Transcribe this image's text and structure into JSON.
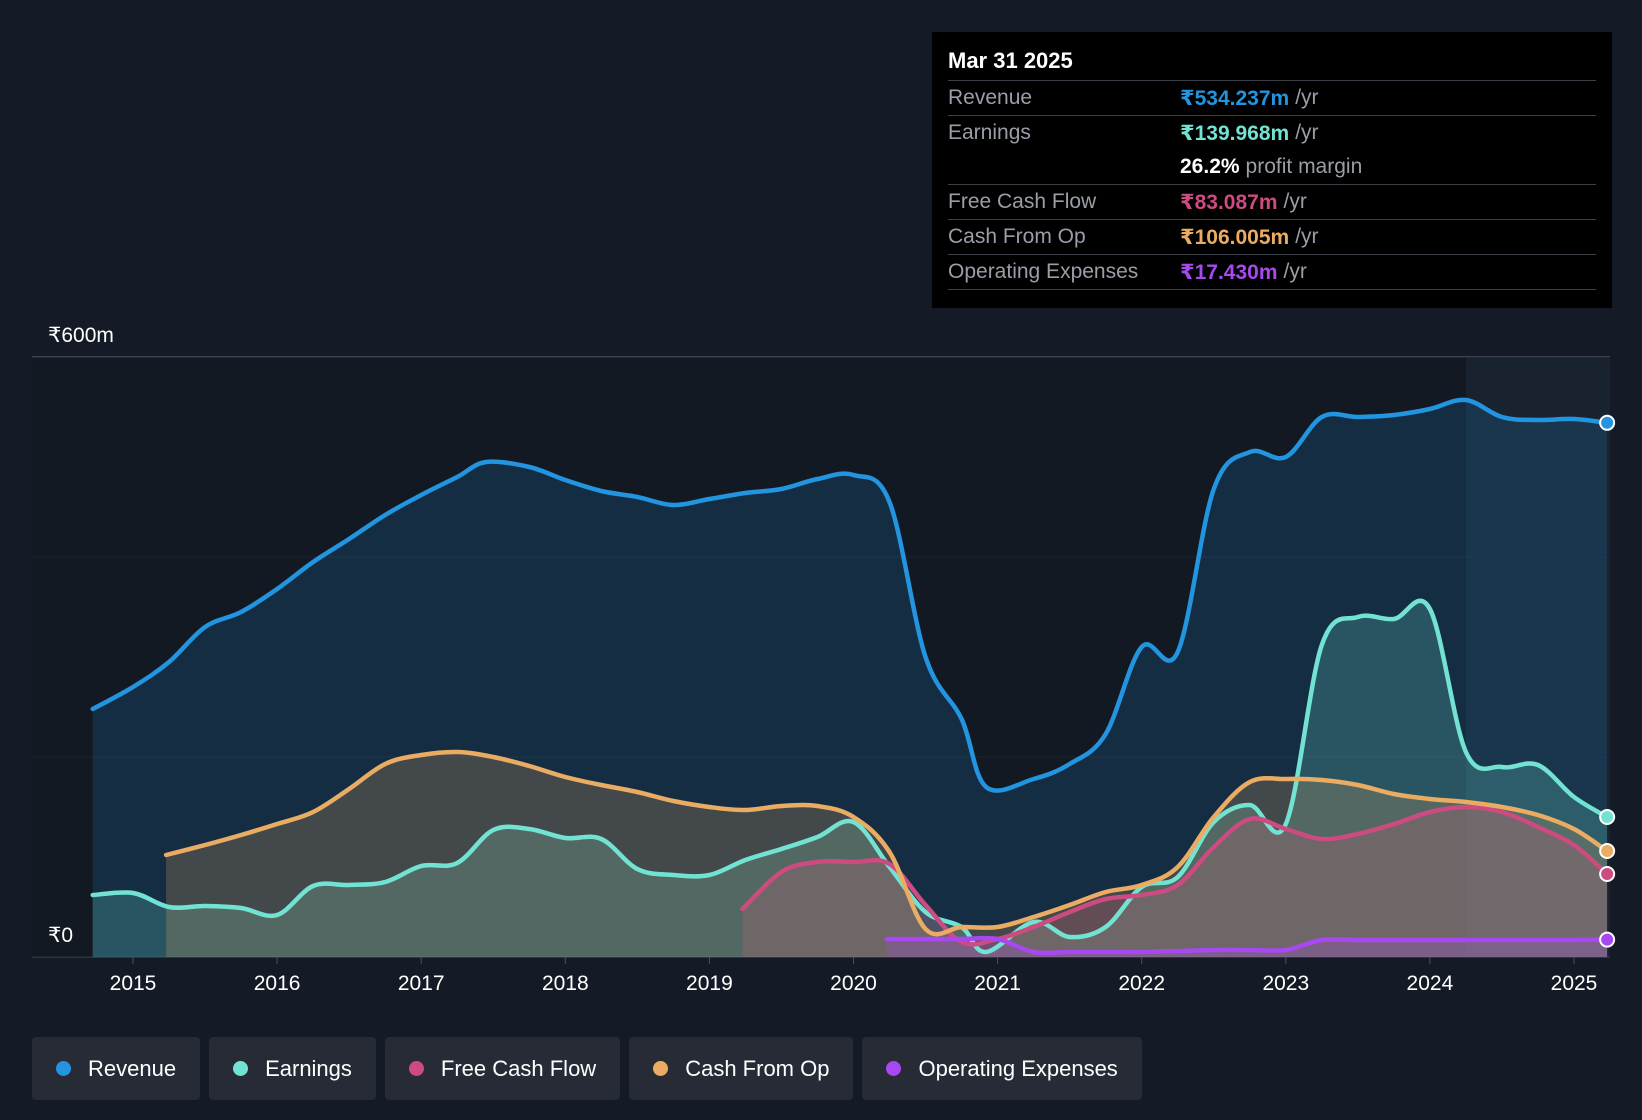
{
  "tooltip": {
    "date": "Mar 31 2025",
    "rows": [
      {
        "label": "Revenue",
        "value": "₹534.237m",
        "unit": "/yr",
        "color": "#2394df"
      },
      {
        "label": "Earnings",
        "value": "₹139.968m",
        "unit": "/yr",
        "color": "#72e3d2"
      },
      {
        "label": "",
        "value": "26.2%",
        "unit": "profit margin",
        "color": "#ffffff"
      },
      {
        "label": "Free Cash Flow",
        "value": "₹83.087m",
        "unit": "/yr",
        "color": "#cc4b80"
      },
      {
        "label": "Cash From Op",
        "value": "₹106.005m",
        "unit": "/yr",
        "color": "#e9ac62"
      },
      {
        "label": "Operating Expenses",
        "value": "₹17.430m",
        "unit": "/yr",
        "color": "#a848f0"
      }
    ]
  },
  "legend": [
    {
      "label": "Revenue",
      "color": "#2394df"
    },
    {
      "label": "Earnings",
      "color": "#72e3d2"
    },
    {
      "label": "Free Cash Flow",
      "color": "#cc4b80"
    },
    {
      "label": "Cash From Op",
      "color": "#e9ac62"
    },
    {
      "label": "Operating Expenses",
      "color": "#a848f0"
    }
  ],
  "chart_data": {
    "type": "area",
    "title": "",
    "ylabel": "",
    "xlabel": "",
    "ylim": [
      0,
      600
    ],
    "y_tick_labels": [
      {
        "value": 600,
        "label": "₹600m"
      },
      {
        "value": 0,
        "label": "₹0"
      }
    ],
    "x_ticks": [
      2015,
      2016,
      2017,
      2018,
      2019,
      2020,
      2021,
      2022,
      2023,
      2024,
      2025
    ],
    "x_range": [
      2014.5,
      2025.23
    ],
    "highlight_start": 2024.25,
    "series": [
      {
        "name": "Revenue",
        "color": "#2394df",
        "points": [
          [
            2014.72,
            248
          ],
          [
            2015,
            270
          ],
          [
            2015.25,
            295
          ],
          [
            2015.5,
            330
          ],
          [
            2015.75,
            345
          ],
          [
            2016,
            368
          ],
          [
            2016.25,
            395
          ],
          [
            2016.5,
            418
          ],
          [
            2016.75,
            442
          ],
          [
            2017,
            462
          ],
          [
            2017.25,
            480
          ],
          [
            2017.45,
            495
          ],
          [
            2017.75,
            490
          ],
          [
            2018,
            477
          ],
          [
            2018.25,
            466
          ],
          [
            2018.5,
            460
          ],
          [
            2018.75,
            452
          ],
          [
            2019,
            458
          ],
          [
            2019.25,
            464
          ],
          [
            2019.5,
            468
          ],
          [
            2019.75,
            478
          ],
          [
            2020,
            482
          ],
          [
            2020.25,
            455
          ],
          [
            2020.5,
            300
          ],
          [
            2020.75,
            238
          ],
          [
            2020.92,
            170
          ],
          [
            2021.25,
            178
          ],
          [
            2021.5,
            193
          ],
          [
            2021.75,
            223
          ],
          [
            2022,
            310
          ],
          [
            2022.25,
            305
          ],
          [
            2022.5,
            468
          ],
          [
            2022.75,
            505
          ],
          [
            2023,
            500
          ],
          [
            2023.25,
            540
          ],
          [
            2023.5,
            540
          ],
          [
            2023.75,
            542
          ],
          [
            2024,
            548
          ],
          [
            2024.25,
            557
          ],
          [
            2024.5,
            540
          ],
          [
            2024.75,
            537
          ],
          [
            2025,
            538
          ],
          [
            2025.23,
            534.2
          ]
        ]
      },
      {
        "name": "Earnings",
        "color": "#72e3d2",
        "points": [
          [
            2014.72,
            62
          ],
          [
            2015,
            64
          ],
          [
            2015.25,
            50
          ],
          [
            2015.5,
            51
          ],
          [
            2015.75,
            49
          ],
          [
            2016,
            42
          ],
          [
            2016.25,
            71
          ],
          [
            2016.5,
            72
          ],
          [
            2016.75,
            75
          ],
          [
            2017,
            91
          ],
          [
            2017.25,
            94
          ],
          [
            2017.5,
            127
          ],
          [
            2017.75,
            128
          ],
          [
            2018,
            119
          ],
          [
            2018.25,
            118
          ],
          [
            2018.5,
            88
          ],
          [
            2018.75,
            82
          ],
          [
            2019,
            82
          ],
          [
            2019.25,
            97
          ],
          [
            2019.5,
            108
          ],
          [
            2019.75,
            120
          ],
          [
            2020,
            135
          ],
          [
            2020.25,
            90
          ],
          [
            2020.5,
            45
          ],
          [
            2020.75,
            30
          ],
          [
            2020.92,
            5
          ],
          [
            2021.25,
            35
          ],
          [
            2021.5,
            20
          ],
          [
            2021.75,
            30
          ],
          [
            2022,
            70
          ],
          [
            2022.25,
            80
          ],
          [
            2022.5,
            135
          ],
          [
            2022.75,
            152
          ],
          [
            2023,
            133
          ],
          [
            2023.25,
            312
          ],
          [
            2023.5,
            340
          ],
          [
            2023.75,
            338
          ],
          [
            2024,
            348
          ],
          [
            2024.25,
            205
          ],
          [
            2024.5,
            190
          ],
          [
            2024.75,
            192
          ],
          [
            2025,
            160
          ],
          [
            2025.23,
            140
          ]
        ]
      },
      {
        "name": "Free Cash Flow",
        "color": "#cc4b80",
        "points": [
          [
            2019.23,
            48
          ],
          [
            2019.5,
            85
          ],
          [
            2019.75,
            95
          ],
          [
            2020,
            95
          ],
          [
            2020.25,
            93
          ],
          [
            2020.5,
            52
          ],
          [
            2020.75,
            15
          ],
          [
            2021,
            18
          ],
          [
            2021.25,
            30
          ],
          [
            2021.5,
            45
          ],
          [
            2021.75,
            58
          ],
          [
            2022,
            62
          ],
          [
            2022.25,
            72
          ],
          [
            2022.5,
            110
          ],
          [
            2022.75,
            138
          ],
          [
            2023,
            128
          ],
          [
            2023.25,
            118
          ],
          [
            2023.5,
            123
          ],
          [
            2023.75,
            133
          ],
          [
            2024,
            145
          ],
          [
            2024.25,
            150
          ],
          [
            2024.5,
            145
          ],
          [
            2024.75,
            130
          ],
          [
            2025,
            112
          ],
          [
            2025.23,
            83
          ]
        ]
      },
      {
        "name": "Cash From Op",
        "color": "#e9ac62",
        "points": [
          [
            2015.23,
            102
          ],
          [
            2015.5,
            112
          ],
          [
            2015.75,
            122
          ],
          [
            2016,
            133
          ],
          [
            2016.25,
            145
          ],
          [
            2016.5,
            168
          ],
          [
            2016.75,
            193
          ],
          [
            2017,
            202
          ],
          [
            2017.25,
            205
          ],
          [
            2017.5,
            200
          ],
          [
            2017.75,
            191
          ],
          [
            2018,
            180
          ],
          [
            2018.25,
            172
          ],
          [
            2018.5,
            165
          ],
          [
            2018.75,
            156
          ],
          [
            2019,
            150
          ],
          [
            2019.25,
            147
          ],
          [
            2019.5,
            151
          ],
          [
            2019.75,
            151
          ],
          [
            2020,
            140
          ],
          [
            2020.25,
            105
          ],
          [
            2020.5,
            28
          ],
          [
            2020.75,
            30
          ],
          [
            2021,
            30
          ],
          [
            2021.25,
            40
          ],
          [
            2021.5,
            52
          ],
          [
            2021.75,
            65
          ],
          [
            2022,
            72
          ],
          [
            2022.25,
            90
          ],
          [
            2022.5,
            140
          ],
          [
            2022.75,
            175
          ],
          [
            2023,
            178
          ],
          [
            2023.25,
            177
          ],
          [
            2023.5,
            172
          ],
          [
            2023.75,
            163
          ],
          [
            2024,
            158
          ],
          [
            2024.25,
            155
          ],
          [
            2024.5,
            150
          ],
          [
            2024.75,
            142
          ],
          [
            2025,
            128
          ],
          [
            2025.23,
            106
          ]
        ]
      },
      {
        "name": "Operating Expenses",
        "color": "#a848f0",
        "points": [
          [
            2020.23,
            18
          ],
          [
            2020.5,
            18
          ],
          [
            2020.75,
            18
          ],
          [
            2021,
            18
          ],
          [
            2021.25,
            5
          ],
          [
            2021.5,
            5
          ],
          [
            2021.75,
            5
          ],
          [
            2022,
            5
          ],
          [
            2022.25,
            6
          ],
          [
            2022.5,
            7
          ],
          [
            2022.75,
            7
          ],
          [
            2023,
            7
          ],
          [
            2023.25,
            17
          ],
          [
            2023.5,
            17
          ],
          [
            2023.75,
            17
          ],
          [
            2024,
            17
          ],
          [
            2024.25,
            17
          ],
          [
            2024.5,
            17
          ],
          [
            2024.75,
            17
          ],
          [
            2025,
            17
          ],
          [
            2025.23,
            17.4
          ]
        ]
      }
    ]
  }
}
